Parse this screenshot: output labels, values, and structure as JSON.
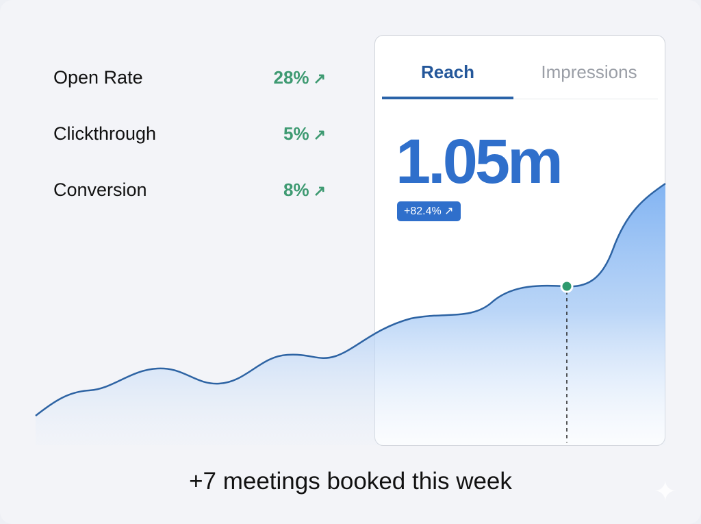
{
  "metrics": [
    {
      "label": "Open Rate",
      "value": "28%",
      "trend_icon": "arrow-up-right-icon"
    },
    {
      "label": "Clickthrough",
      "value": "5%",
      "trend_icon": "arrow-up-right-icon"
    },
    {
      "label": "Conversion",
      "value": "8%",
      "trend_icon": "arrow-up-right-icon"
    }
  ],
  "card": {
    "tabs": [
      {
        "label": "Reach",
        "active": true
      },
      {
        "label": "Impressions",
        "active": false
      }
    ],
    "value": "1.05m",
    "change": "+82.4%"
  },
  "footer": {
    "text": "+7 meetings booked this week"
  },
  "colors": {
    "accent": "#2f6fcb",
    "positive": "#3e9a72",
    "marker": "#2e9a6e"
  }
}
